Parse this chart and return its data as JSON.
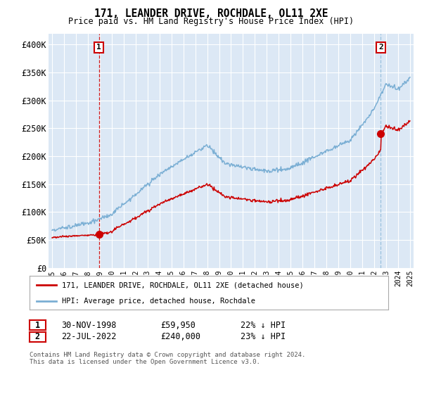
{
  "title": "171, LEANDER DRIVE, ROCHDALE, OL11 2XE",
  "subtitle": "Price paid vs. HM Land Registry's House Price Index (HPI)",
  "footer": "Contains HM Land Registry data © Crown copyright and database right 2024.\nThis data is licensed under the Open Government Licence v3.0.",
  "legend_line1": "171, LEANDER DRIVE, ROCHDALE, OL11 2XE (detached house)",
  "legend_line2": "HPI: Average price, detached house, Rochdale",
  "annotation1_label": "1",
  "annotation1_text": "30-NOV-1998",
  "annotation1_price": "£59,950",
  "annotation1_hpi": "22% ↓ HPI",
  "annotation2_label": "2",
  "annotation2_text": "22-JUL-2022",
  "annotation2_price": "£240,000",
  "annotation2_hpi": "23% ↓ HPI",
  "ylim": [
    0,
    420000
  ],
  "yticks": [
    0,
    50000,
    100000,
    150000,
    200000,
    250000,
    300000,
    350000,
    400000
  ],
  "ytick_labels": [
    "£0",
    "£50K",
    "£100K",
    "£150K",
    "£200K",
    "£250K",
    "£300K",
    "£350K",
    "£400K"
  ],
  "hpi_color": "#7bafd4",
  "price_color": "#cc0000",
  "vline1_color": "#cc0000",
  "vline2_color": "#7bafd4",
  "bg_color": "#dce8f5",
  "grid_color": "#ffffff",
  "marker1_year": 1998.92,
  "marker1_price": 59950,
  "marker2_year": 2022.55,
  "marker2_price": 240000
}
